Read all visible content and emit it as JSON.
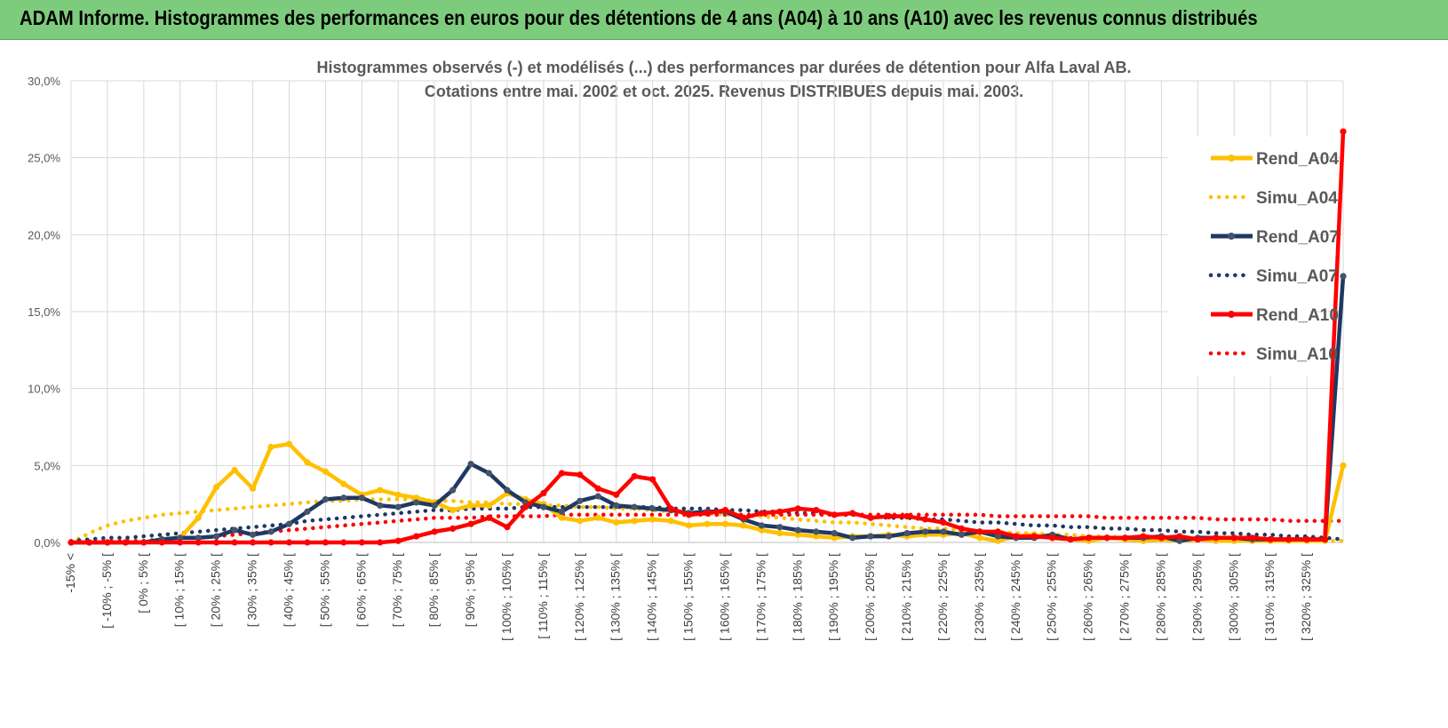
{
  "header": {
    "title": "ADAM Informe. Histogrammes des performances en euros pour des détentions de 4 ans (A04) à 10 ans (A10) avec les revenus connus distribués"
  },
  "colors": {
    "header_bg": "#7dcc7d",
    "A04": "#ffc000",
    "A07": "#1f3864",
    "A10": "#ff0000",
    "grid": "#d9d9d9"
  },
  "chart_data": {
    "type": "line",
    "title_line1": "Histogrammes observés (-) et modélisés (...) des performances par durées de détention pour Alfa Laval AB.",
    "title_line2": "Cotations entre mai. 2002 et oct. 2025. Revenus DISTRIBUES depuis mai. 2003.",
    "ylim": [
      0,
      30
    ],
    "yticks": [
      0,
      5,
      10,
      15,
      20,
      25,
      30
    ],
    "ytick_labels": [
      "0,0%",
      "5,0%",
      "10,0%",
      "15,0%",
      "20,0%",
      "25,0%",
      "30,0%"
    ],
    "grid": true,
    "legend_position": "right",
    "x_labels": [
      "-15% <",
      "[ -10% ; -5% [",
      "[ 0% ; 5% [",
      "[ 10% ; 15% [",
      "[ 20% ; 25% [",
      "[ 30% ; 35% [",
      "[ 40% ; 45% [",
      "[ 50% ; 55% [",
      "[ 60% ; 65% [",
      "[ 70% ; 75% [",
      "[ 80% ; 85% [",
      "[ 90% ; 95% [",
      "[ 100% ; 105% [",
      "[ 110% ; 115% [",
      "[ 120% ; 125% [",
      "[ 130% ; 135% [",
      "[ 140% ; 145% [",
      "[ 150% ; 155% [",
      "[ 160% ; 165% [",
      "[ 170% ; 175% [",
      "[ 180% ; 185% [",
      "[ 190% ; 195% [",
      "[ 200% ; 205% [",
      "[ 210% ; 215% [",
      "[ 220% ; 225% [",
      "[ 230% ; 235% [",
      "[ 240% ; 245% [",
      "[ 250% ; 255% [",
      "[ 260% ; 265% [",
      "[ 270% ; 275% [",
      "[ 280% ; 285% [",
      "[ 290% ; 295% [",
      "[ 300% ; 305% [",
      "[ 310% ; 315% [",
      "[ 320% ; 325% ["
    ],
    "series": [
      {
        "name": "Rend_A04",
        "style": "solid",
        "color": "#ffc000",
        "values": [
          0,
          0,
          0,
          0,
          0,
          0.2,
          0.3,
          1.6,
          3.6,
          4.7,
          3.5,
          6.2,
          6.4,
          5.2,
          4.6,
          3.8,
          3.1,
          3.4,
          3.1,
          2.9,
          2.6,
          2.1,
          2.4,
          2.4,
          3.2,
          2.8,
          2.5,
          1.6,
          1.4,
          1.6,
          1.3,
          1.4,
          1.5,
          1.4,
          1.1,
          1.2,
          1.2,
          1.1,
          0.8,
          0.6,
          0.5,
          0.4,
          0.3,
          0.4,
          0.4,
          0.5,
          0.4,
          0.5,
          0.5,
          0.6,
          0.3,
          0.1,
          0.4,
          0.5,
          0.3,
          0.2,
          0.1,
          0.3,
          0.2,
          0.1,
          0.2,
          0.1,
          0.2,
          0.1,
          0.1,
          0.1,
          0.1,
          0.1,
          0.1,
          0.1,
          5.0
        ]
      },
      {
        "name": "Simu_A04",
        "style": "dotted",
        "color": "#ffc000",
        "values": [
          0,
          0.6,
          1.1,
          1.4,
          1.6,
          1.8,
          1.9,
          2.0,
          2.1,
          2.2,
          2.3,
          2.4,
          2.5,
          2.6,
          2.7,
          2.7,
          2.8,
          2.8,
          2.8,
          2.8,
          2.7,
          2.7,
          2.6,
          2.6,
          2.5,
          2.5,
          2.4,
          2.4,
          2.3,
          2.3,
          2.2,
          2.2,
          2.1,
          2.0,
          2.0,
          1.9,
          1.8,
          1.7,
          1.7,
          1.6,
          1.5,
          1.4,
          1.3,
          1.3,
          1.2,
          1.1,
          1.0,
          0.9,
          0.9,
          0.8,
          0.7,
          0.7,
          0.6,
          0.6,
          0.5,
          0.5,
          0.4,
          0.4,
          0.3,
          0.3,
          0.3,
          0.2,
          0.2,
          0.2,
          0.2,
          0.1,
          0.1,
          0.1,
          0.1,
          0.1,
          0.1
        ]
      },
      {
        "name": "Rend_A07",
        "style": "solid",
        "color": "#1f3864",
        "values": [
          0,
          0,
          0,
          0,
          0,
          0.2,
          0.3,
          0.3,
          0.4,
          0.8,
          0.5,
          0.7,
          1.2,
          2.0,
          2.8,
          2.9,
          2.9,
          2.4,
          2.3,
          2.6,
          2.4,
          3.4,
          5.1,
          4.5,
          3.4,
          2.6,
          2.3,
          2.0,
          2.7,
          3.0,
          2.4,
          2.3,
          2.2,
          2.1,
          1.9,
          2.0,
          2.0,
          1.5,
          1.1,
          1.0,
          0.8,
          0.7,
          0.6,
          0.3,
          0.4,
          0.4,
          0.6,
          0.7,
          0.7,
          0.5,
          0.7,
          0.4,
          0.3,
          0.3,
          0.5,
          0.2,
          0.3,
          0.3,
          0.3,
          0.3,
          0.4,
          0.1,
          0.3,
          0.3,
          0.3,
          0.2,
          0.2,
          0.2,
          0.2,
          0.2,
          17.3
        ]
      },
      {
        "name": "Simu_A07",
        "style": "dotted",
        "color": "#1f3864",
        "values": [
          0.1,
          0.2,
          0.3,
          0.3,
          0.4,
          0.5,
          0.6,
          0.7,
          0.8,
          0.9,
          1.0,
          1.1,
          1.2,
          1.4,
          1.5,
          1.6,
          1.7,
          1.8,
          1.9,
          2.0,
          2.1,
          2.1,
          2.2,
          2.2,
          2.2,
          2.3,
          2.3,
          2.3,
          2.3,
          2.3,
          2.3,
          2.3,
          2.3,
          2.2,
          2.2,
          2.2,
          2.1,
          2.1,
          2.0,
          2.0,
          1.9,
          1.9,
          1.8,
          1.8,
          1.7,
          1.6,
          1.6,
          1.5,
          1.5,
          1.4,
          1.3,
          1.3,
          1.2,
          1.1,
          1.1,
          1.0,
          1.0,
          0.9,
          0.9,
          0.8,
          0.8,
          0.7,
          0.7,
          0.6,
          0.6,
          0.5,
          0.5,
          0.4,
          0.4,
          0.3,
          0.2
        ]
      },
      {
        "name": "Rend_A10",
        "style": "solid",
        "color": "#ff0000",
        "values": [
          0,
          0,
          0,
          0,
          0,
          0,
          0,
          0,
          0,
          0,
          0,
          0,
          0,
          0,
          0,
          0,
          0,
          0,
          0.1,
          0.4,
          0.7,
          0.9,
          1.2,
          1.6,
          1.0,
          2.3,
          3.2,
          4.5,
          4.4,
          3.5,
          3.1,
          4.3,
          4.1,
          2.2,
          1.8,
          1.9,
          2.1,
          1.6,
          1.9,
          2.0,
          2.2,
          2.1,
          1.8,
          1.9,
          1.6,
          1.7,
          1.7,
          1.5,
          1.3,
          0.9,
          0.7,
          0.7,
          0.4,
          0.4,
          0.3,
          0.2,
          0.3,
          0.3,
          0.3,
          0.4,
          0.3,
          0.4,
          0.2,
          0.3,
          0.3,
          0.3,
          0.2,
          0.2,
          0.2,
          0.2,
          26.7
        ]
      },
      {
        "name": "Simu_A10",
        "style": "dotted",
        "color": "#ff0000",
        "values": [
          0,
          0,
          0.1,
          0.1,
          0.1,
          0.2,
          0.3,
          0.3,
          0.4,
          0.5,
          0.6,
          0.7,
          0.8,
          0.9,
          1.0,
          1.1,
          1.2,
          1.3,
          1.4,
          1.5,
          1.6,
          1.6,
          1.6,
          1.7,
          1.7,
          1.7,
          1.7,
          1.8,
          1.8,
          1.8,
          1.8,
          1.8,
          1.8,
          1.8,
          1.8,
          1.8,
          1.8,
          1.8,
          1.8,
          1.8,
          1.8,
          1.8,
          1.8,
          1.8,
          1.8,
          1.8,
          1.8,
          1.8,
          1.8,
          1.8,
          1.8,
          1.7,
          1.7,
          1.7,
          1.7,
          1.7,
          1.7,
          1.6,
          1.6,
          1.6,
          1.6,
          1.6,
          1.6,
          1.5,
          1.5,
          1.5,
          1.5,
          1.4,
          1.4,
          1.4,
          1.4
        ]
      }
    ]
  }
}
